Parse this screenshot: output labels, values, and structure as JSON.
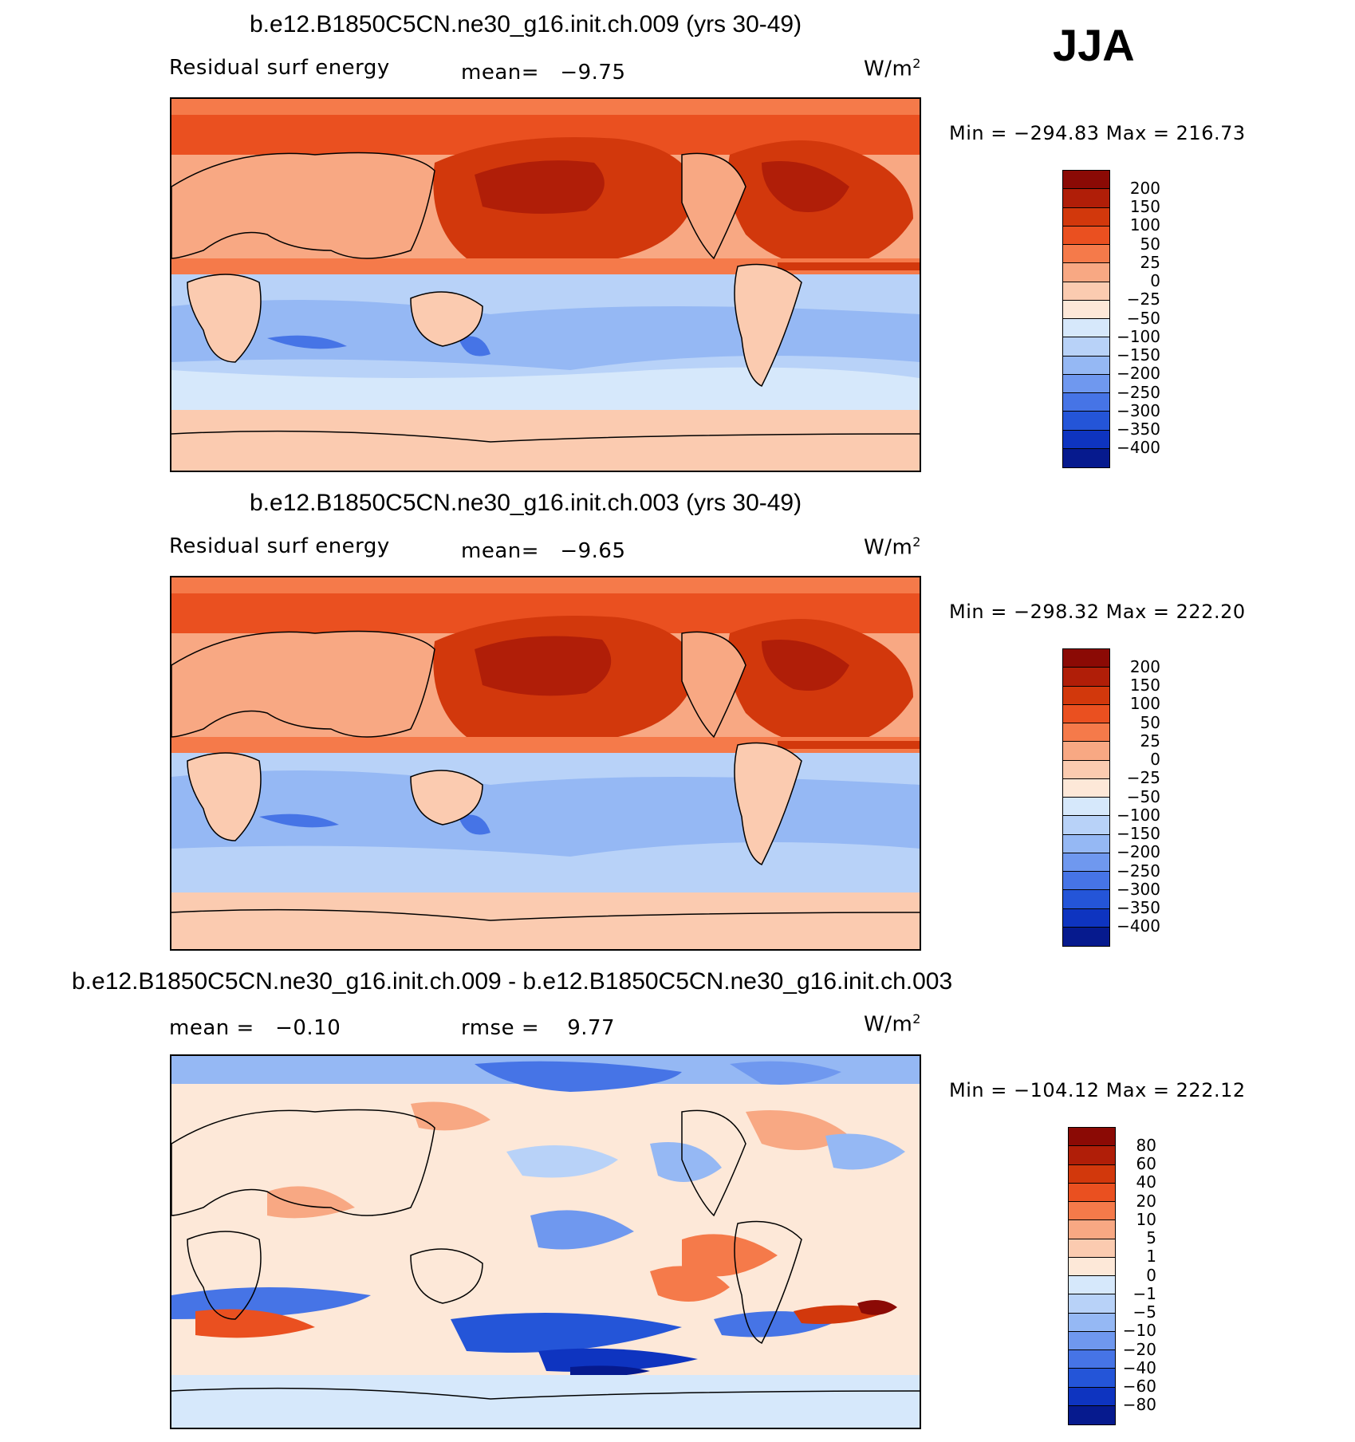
{
  "season": "JJA",
  "panels": [
    {
      "title": "b.e12.B1850C5CN.ne30_g16.init.ch.009 (yrs 30-49)",
      "left_label": "Residual surf energy",
      "center_label": "mean=   −9.75",
      "unit_base": "W/m",
      "unit_exp": "2",
      "minmax": "Min = −294.83 Max = 216.73"
    },
    {
      "title": "b.e12.B1850C5CN.ne30_g16.init.ch.003 (yrs 30-49)",
      "left_label": "Residual surf energy",
      "center_label": "mean=   −9.65",
      "unit_base": "W/m",
      "unit_exp": "2",
      "minmax": "Min = −298.32 Max = 222.20"
    },
    {
      "title": "b.e12.B1850C5CN.ne30_g16.init.ch.009 - b.e12.B1850C5CN.ne30_g16.init.ch.003",
      "left_label": "mean =   −0.10",
      "center_label": "rmse =    9.77",
      "unit_base": "W/m",
      "unit_exp": "2",
      "minmax": "Min = −104.12 Max = 222.12"
    }
  ],
  "chart_data": [
    {
      "type": "heatmap",
      "title": "b.e12.B1850C5CN.ne30_g16.init.ch.009 (yrs 30-49)",
      "variable": "Residual surf energy",
      "units": "W/m2",
      "mean": -9.75,
      "min": -294.83,
      "max": 216.73,
      "colorbar": {
        "levels": [
          "200",
          "150",
          "100",
          "50",
          "25",
          "0",
          "−25",
          "−50",
          "−100",
          "−150",
          "−200",
          "−250",
          "−300",
          "−350",
          "−400"
        ],
        "colors": [
          "#8b0a05",
          "#b01e08",
          "#d2380c",
          "#ea5020",
          "#f57a4a",
          "#f8a883",
          "#fbcbb0",
          "#fde8d8",
          "#d6e8fb",
          "#b8d2f8",
          "#95b8f4",
          "#6f98ef",
          "#4674e6",
          "#2455d8",
          "#0e34c0",
          "#061a8e"
        ]
      }
    },
    {
      "type": "heatmap",
      "title": "b.e12.B1850C5CN.ne30_g16.init.ch.003 (yrs 30-49)",
      "variable": "Residual surf energy",
      "units": "W/m2",
      "mean": -9.65,
      "min": -298.32,
      "max": 222.2,
      "colorbar": {
        "levels": [
          "200",
          "150",
          "100",
          "50",
          "25",
          "0",
          "−25",
          "−50",
          "−100",
          "−150",
          "−200",
          "−250",
          "−300",
          "−350",
          "−400"
        ],
        "colors": [
          "#8b0a05",
          "#b01e08",
          "#d2380c",
          "#ea5020",
          "#f57a4a",
          "#f8a883",
          "#fbcbb0",
          "#fde8d8",
          "#d6e8fb",
          "#b8d2f8",
          "#95b8f4",
          "#6f98ef",
          "#4674e6",
          "#2455d8",
          "#0e34c0",
          "#061a8e"
        ]
      }
    },
    {
      "type": "heatmap",
      "title": "b.e12.B1850C5CN.ne30_g16.init.ch.009 - b.e12.B1850C5CN.ne30_g16.init.ch.003",
      "units": "W/m2",
      "mean": -0.1,
      "rmse": 9.77,
      "min": -104.12,
      "max": 222.12,
      "colorbar": {
        "levels": [
          "80",
          "60",
          "40",
          "20",
          "10",
          "5",
          "1",
          "0",
          "−1",
          "−5",
          "−10",
          "−20",
          "−40",
          "−60",
          "−80"
        ],
        "colors": [
          "#8b0a05",
          "#b01e08",
          "#d2380c",
          "#ea5020",
          "#f57a4a",
          "#f8a883",
          "#fbcbb0",
          "#fde8d8",
          "#d6e8fb",
          "#b8d2f8",
          "#95b8f4",
          "#6f98ef",
          "#4674e6",
          "#2455d8",
          "#0e34c0",
          "#061a8e"
        ]
      }
    }
  ]
}
